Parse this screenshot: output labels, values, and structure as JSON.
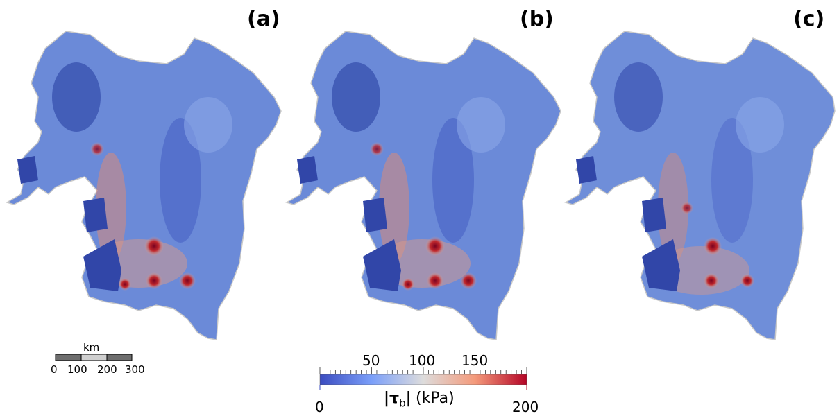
{
  "panels": [
    {
      "label": "(a)"
    },
    {
      "label": "(b)"
    },
    {
      "label": "(c)"
    }
  ],
  "scale_bar": {
    "unit": "km",
    "ticks": [
      "0",
      "100",
      "200",
      "300"
    ]
  },
  "colorbar": {
    "min": "0",
    "max": "200",
    "major_ticks": [
      "50",
      "100",
      "150"
    ],
    "label_main": "|τ",
    "label_sub": "b",
    "label_unit": "| (kPa)",
    "colors": {
      "low": "#3b4cc0",
      "mid": "#dddcdc",
      "high": "#b40426"
    }
  }
}
